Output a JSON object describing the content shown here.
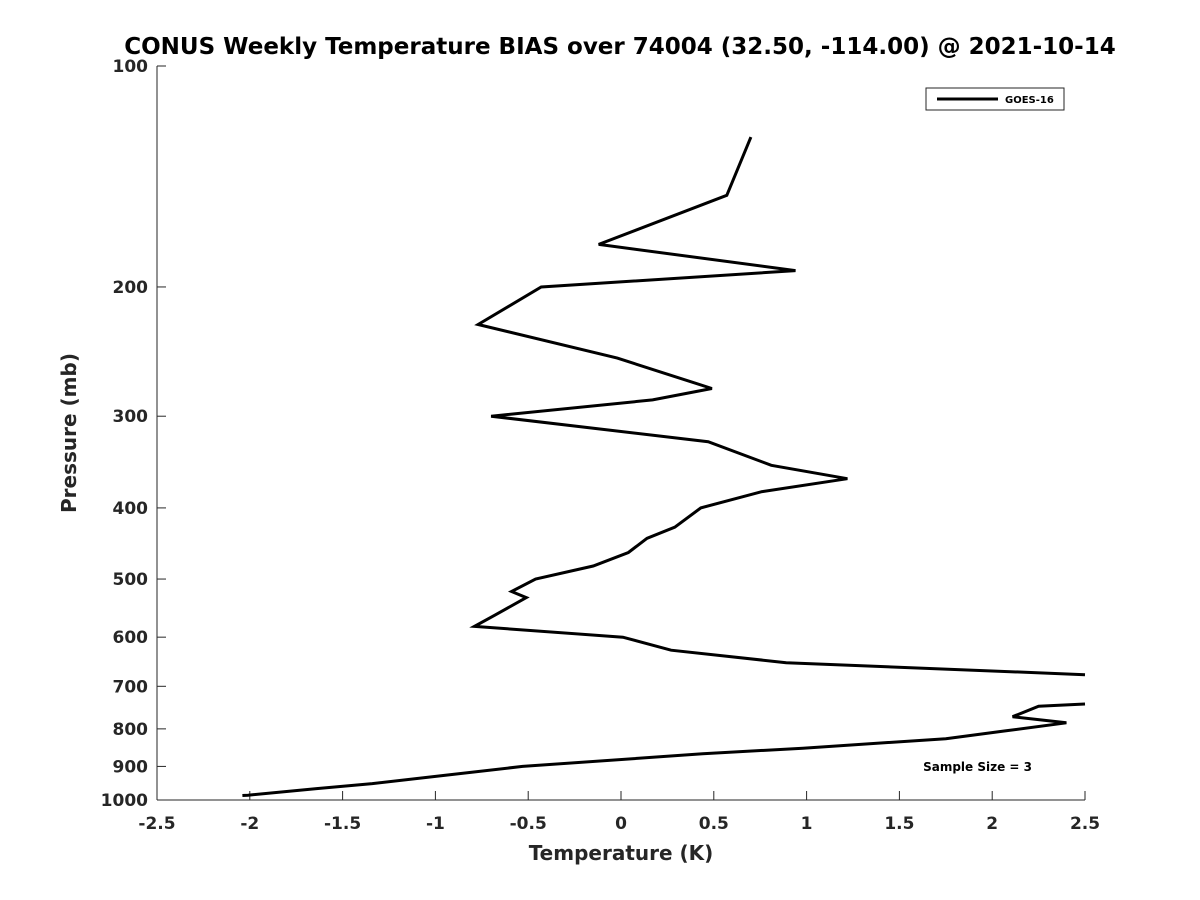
{
  "chart_data": {
    "type": "line",
    "title": "CONUS Weekly Temperature BIAS over 74004 (32.50, -114.00) @ 2021-10-14",
    "xlabel": "Temperature (K)",
    "ylabel": "Pressure (mb)",
    "xlim": [
      -2.5,
      2.5
    ],
    "ylim": [
      1000,
      100
    ],
    "yscale": "log",
    "xticks": [
      -2.5,
      -2,
      -1.5,
      -1,
      -0.5,
      0,
      0.5,
      1,
      1.5,
      2,
      2.5
    ],
    "xtick_labels": [
      "-2.5",
      "-2",
      "-1.5",
      "-1",
      "-0.5",
      "0",
      "0.5",
      "1",
      "1.5",
      "2",
      "2.5"
    ],
    "yticks": [
      100,
      200,
      300,
      400,
      500,
      600,
      700,
      800,
      900,
      1000
    ],
    "ytick_labels": [
      "100",
      "200",
      "300",
      "400",
      "500",
      "600",
      "700",
      "800",
      "900",
      "1000"
    ],
    "grid": false,
    "legend": {
      "position": "top-right"
    },
    "annotation": "Sample Size = 3",
    "series": [
      {
        "name": "GOES-16",
        "color": "#000000",
        "points": [
          {
            "x": 0.7,
            "p": 125
          },
          {
            "x": 0.57,
            "p": 150
          },
          {
            "x": -0.12,
            "p": 175
          },
          {
            "x": 0.94,
            "p": 190
          },
          {
            "x": -0.43,
            "p": 200
          },
          {
            "x": -0.77,
            "p": 225
          },
          {
            "x": -0.02,
            "p": 250
          },
          {
            "x": 0.49,
            "p": 275
          },
          {
            "x": 0.17,
            "p": 285
          },
          {
            "x": -0.7,
            "p": 300
          },
          {
            "x": 0.47,
            "p": 325
          },
          {
            "x": 0.81,
            "p": 350
          },
          {
            "x": 1.22,
            "p": 365
          },
          {
            "x": 0.76,
            "p": 380
          },
          {
            "x": 0.43,
            "p": 400
          },
          {
            "x": 0.29,
            "p": 425
          },
          {
            "x": 0.14,
            "p": 440
          },
          {
            "x": 0.04,
            "p": 460
          },
          {
            "x": -0.15,
            "p": 480
          },
          {
            "x": -0.46,
            "p": 500
          },
          {
            "x": -0.59,
            "p": 520
          },
          {
            "x": -0.51,
            "p": 530
          },
          {
            "x": -0.68,
            "p": 560
          },
          {
            "x": -0.79,
            "p": 580
          },
          {
            "x": 0.01,
            "p": 600
          },
          {
            "x": 0.27,
            "p": 625
          },
          {
            "x": 0.89,
            "p": 650
          },
          {
            "x": 2.5,
            "p": 675
          }
        ]
      },
      {
        "name": "",
        "color": "#000000",
        "points": [
          {
            "x": 2.5,
            "p": 740
          },
          {
            "x": 2.25,
            "p": 745
          },
          {
            "x": 2.11,
            "p": 770
          },
          {
            "x": 2.4,
            "p": 785
          },
          {
            "x": 2.07,
            "p": 805
          },
          {
            "x": 1.75,
            "p": 825
          },
          {
            "x": 0.98,
            "p": 850
          },
          {
            "x": 0.44,
            "p": 865
          },
          {
            "x": -0.53,
            "p": 900
          },
          {
            "x": -0.94,
            "p": 925
          },
          {
            "x": -1.34,
            "p": 950
          },
          {
            "x": -1.64,
            "p": 965
          },
          {
            "x": -2.01,
            "p": 985
          },
          {
            "x": -2.04,
            "p": 986
          }
        ]
      }
    ]
  }
}
